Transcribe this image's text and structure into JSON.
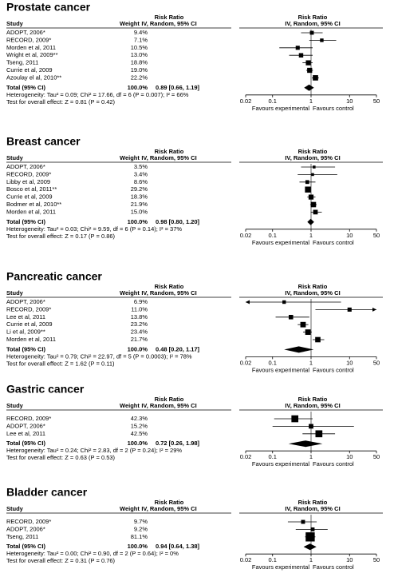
{
  "chart_data": [
    {
      "type": "forest",
      "title": "Prostate cancer",
      "col_study": "Study",
      "col_weight": "Weight",
      "col_rr": "Risk Ratio",
      "col_method": "IV, Random, 95% CI",
      "plot_rr": "Risk Ratio",
      "plot_method": "IV, Random, 95% CI",
      "studies": [
        {
          "name": "ADOPT, 2006*",
          "weight": 9.4,
          "weight_label": "9.4%",
          "rr": 1.05,
          "lo": 0.55,
          "hi": 2.0
        },
        {
          "name": "RECORD, 2009*",
          "weight": 7.1,
          "weight_label": "7.1%",
          "rr": 1.9,
          "lo": 0.9,
          "hi": 4.5
        },
        {
          "name": "Morden et al, 2011",
          "weight": 10.5,
          "weight_label": "10.5%",
          "rr": 0.45,
          "lo": 0.15,
          "hi": 1.1
        },
        {
          "name": "Wright et al, 2009**",
          "weight": 13,
          "weight_label": "13.0%",
          "rr": 0.55,
          "lo": 0.27,
          "hi": 1.1
        },
        {
          "name": "Tseng, 2011",
          "weight": 18.8,
          "weight_label": "18.8%",
          "rr": 0.85,
          "lo": 0.6,
          "hi": 1.1
        },
        {
          "name": "Currie et al, 2009",
          "weight": 19,
          "weight_label": "19.0%",
          "rr": 0.92,
          "lo": 0.75,
          "hi": 1.12
        },
        {
          "name": "Azoulay el al, 2010**",
          "weight": 22.2,
          "weight_label": "22.2%",
          "rr": 1.3,
          "lo": 1.05,
          "hi": 1.6
        }
      ],
      "total_name": "Total (95% CI)",
      "total_weight": "100.0%",
      "total_estimate": 0.89,
      "total_ci": [
        0.66,
        1.19
      ],
      "total_label": "0.89 [0.66, 1.19]",
      "heterogeneity": "Heterogeneity: Tau² = 0.09; Chi² = 17.66, df = 6 (P = 0.007); I² = 66%",
      "overall_effect": "Test for overall effect: Z = 0.81 (P = 0.42)",
      "xscale": "log",
      "xlim": [
        0.02,
        50
      ],
      "xticks": [
        0.02,
        0.1,
        1,
        10,
        50
      ],
      "favours_left": "Favours experimental",
      "favours_right": "Favours control"
    },
    {
      "type": "forest",
      "title": "Breast cancer",
      "col_study": "Study",
      "col_weight": "Weight",
      "col_rr": "Risk Ratio",
      "col_method": "IV, Random, 95% CI",
      "plot_rr": "Risk Ratio",
      "plot_method": "IV, Random, 95% CI",
      "studies": [
        {
          "name": "ADOPT, 2006*",
          "weight": 3.5,
          "weight_label": "3.5%",
          "rr": 1.2,
          "lo": 0.55,
          "hi": 4.2
        },
        {
          "name": "RECORD, 2009*",
          "weight": 3.4,
          "weight_label": "3.4%",
          "rr": 1.1,
          "lo": 0.45,
          "hi": 4.8
        },
        {
          "name": "Libby et al, 2009",
          "weight": 8.6,
          "weight_label": "8.6%",
          "rr": 0.8,
          "lo": 0.5,
          "hi": 1.3
        },
        {
          "name": "Bosco et al, 2011**",
          "weight": 29.2,
          "weight_label": "29.2%",
          "rr": 0.83,
          "lo": 0.72,
          "hi": 0.95
        },
        {
          "name": "Currie et al, 2009",
          "weight": 18.3,
          "weight_label": "18.3%",
          "rr": 1.0,
          "lo": 0.8,
          "hi": 1.3
        },
        {
          "name": "Bodmer et al, 2010**",
          "weight": 21.9,
          "weight_label": "21.9%",
          "rr": 1.15,
          "lo": 0.95,
          "hi": 1.4
        },
        {
          "name": "Morden et al, 2011",
          "weight": 15,
          "weight_label": "15.0%",
          "rr": 1.3,
          "lo": 0.98,
          "hi": 1.9
        }
      ],
      "total_name": "Total (95% CI)",
      "total_weight": "100.0%",
      "total_estimate": 0.98,
      "total_ci": [
        0.8,
        1.2
      ],
      "total_label": "0.98 [0.80, 1.20]",
      "heterogeneity": "Heterogeneity: Tau² = 0.03; Chi² = 9.59, df = 6 (P = 0.14); I² = 37%",
      "overall_effect": "Test for overall effect: Z = 0.17 (P = 0.86)",
      "xscale": "log",
      "xlim": [
        0.02,
        50
      ],
      "xticks": [
        0.02,
        0.1,
        1,
        10,
        50
      ],
      "favours_left": "Favours experimental",
      "favours_right": "Favours control"
    },
    {
      "type": "forest",
      "title": "Pancreatic cancer",
      "col_study": "Study",
      "col_weight": "Weight",
      "col_rr": "Risk Ratio",
      "col_method": "IV, Random, 95% CI",
      "plot_rr": "Risk Ratio",
      "plot_method": "IV, Random, 95% CI",
      "studies": [
        {
          "name": "ADOPT, 2006*",
          "weight": 6.9,
          "weight_label": "6.9%",
          "rr": 0.2,
          "lo": 0.01,
          "hi": 6
        },
        {
          "name": "RECORD, 2009*",
          "weight": 11,
          "weight_label": "11.0%",
          "rr": 10,
          "lo": 1.3,
          "hi": 60
        },
        {
          "name": "Lee et al, 2011",
          "weight": 13.8,
          "weight_label": "13.8%",
          "rr": 0.3,
          "lo": 0.12,
          "hi": 0.9
        },
        {
          "name": "Currie et al, 2009",
          "weight": 23.2,
          "weight_label": "23.2%",
          "rr": 0.62,
          "lo": 0.45,
          "hi": 0.85
        },
        {
          "name": "Li et al, 2009**",
          "weight": 23.4,
          "weight_label": "23.4%",
          "rr": 0.83,
          "lo": 0.62,
          "hi": 1.05
        },
        {
          "name": "Morden et al, 2011",
          "weight": 21.7,
          "weight_label": "21.7%",
          "rr": 1.5,
          "lo": 1.1,
          "hi": 2.2
        }
      ],
      "total_name": "Total (95% CI)",
      "total_weight": "100.0%",
      "total_estimate": 0.48,
      "total_ci": [
        0.2,
        1.17
      ],
      "total_label": "0.48 [0.20, 1.17]",
      "heterogeneity": "Heterogeneity: Tau² = 0.79; Chi² = 22.97, df = 5 (P = 0.0003); I² = 78%",
      "overall_effect": "Test for overall effect: Z = 1.62 (P = 0.11)",
      "xscale": "log",
      "xlim": [
        0.02,
        50
      ],
      "xticks": [
        0.02,
        0.1,
        1,
        10,
        50
      ],
      "favours_left": "Favours experimental",
      "favours_right": "Favours control"
    },
    {
      "type": "forest",
      "title": "Gastric cancer",
      "col_study": "Study",
      "col_weight": "Weight",
      "col_rr": "Risk Ratio",
      "col_method": "IV, Random, 95% CI",
      "plot_rr": "Risk Ratio",
      "plot_method": "IV, Random, 95% CI",
      "studies": [
        {
          "name": "RECORD, 2009*",
          "weight": 42.3,
          "weight_label": "42.3%",
          "rr": 0.38,
          "lo": 0.11,
          "hi": 1.1
        },
        {
          "name": "ADOPT, 2006*",
          "weight": 15.2,
          "weight_label": "15.2%",
          "rr": 1.0,
          "lo": 0.1,
          "hi": 13
        },
        {
          "name": "Lee et al, 2011",
          "weight": 42.5,
          "weight_label": "42.5%",
          "rr": 1.6,
          "lo": 0.6,
          "hi": 4.2
        }
      ],
      "total_name": "Total (95% CI)",
      "total_weight": "100.0%",
      "total_estimate": 0.72,
      "total_ci": [
        0.26,
        1.98
      ],
      "total_label": "0.72 [0.26, 1.98]",
      "heterogeneity": "Heterogeneity: Tau² = 0.24; Chi² = 2.83, df = 2 (P = 0.24); I² = 29%",
      "overall_effect": "Test for overall effect: Z = 0.63 (P = 0.53)",
      "xscale": "log",
      "xlim": [
        0.02,
        50
      ],
      "xticks": [
        0.02,
        0.1,
        1,
        10,
        50
      ],
      "favours_left": "Favours experimental",
      "favours_right": "Favours control"
    },
    {
      "type": "forest",
      "title": "Bladder cancer",
      "col_study": "Study",
      "col_weight": "Weight",
      "col_rr": "Risk Ratio",
      "col_method": "IV, Random, 95% CI",
      "plot_rr": "Risk Ratio",
      "plot_method": "IV, Random, 95% CI",
      "studies": [
        {
          "name": "RECORD, 2009*",
          "weight": 9.7,
          "weight_label": "9.7%",
          "rr": 0.62,
          "lo": 0.25,
          "hi": 1.4
        },
        {
          "name": "ADOPT, 2006*",
          "weight": 9.2,
          "weight_label": "9.2%",
          "rr": 1.1,
          "lo": 0.4,
          "hi": 2.7
        },
        {
          "name": "Tseng, 2011",
          "weight": 81.1,
          "weight_label": "81.1%",
          "rr": 0.95,
          "lo": 0.7,
          "hi": 1.3
        }
      ],
      "total_name": "Total (95% CI)",
      "total_weight": "100.0%",
      "total_estimate": 0.94,
      "total_ci": [
        0.64,
        1.38
      ],
      "total_label": "0.94 [0.64, 1.38]",
      "heterogeneity": "Heterogeneity: Tau² = 0.00; Chi² = 0.90, df = 2 (P = 0.64); I² = 0%",
      "overall_effect": "Test for overall effect: Z = 0.31 (P = 0.76)",
      "xscale": "log",
      "xlim": [
        0.02,
        50
      ],
      "xticks": [
        0.02,
        0.1,
        1,
        10,
        50
      ],
      "favours_left": "Favours experimental",
      "favours_right": "Favours control"
    }
  ]
}
